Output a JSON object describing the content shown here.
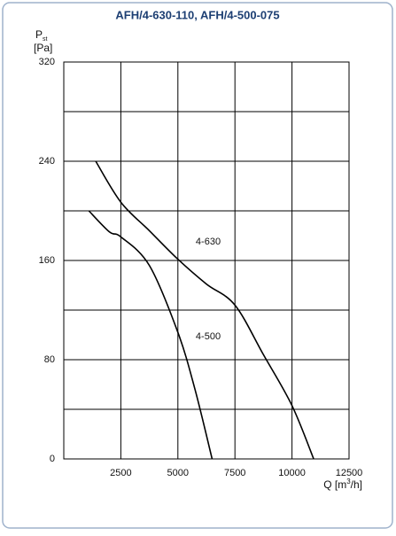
{
  "chart_data": {
    "type": "line",
    "title": "AFH/4-630-110, AFH/4-500-075",
    "y_label": {
      "symbol": "P",
      "subscript": "st",
      "unit": "[Pa]"
    },
    "x_label": {
      "text": "Q [m",
      "superscript": "3",
      "end": "/h]"
    },
    "xlim": [
      0,
      12500
    ],
    "xticks": [
      2500,
      5000,
      7500,
      10000,
      12500
    ],
    "ylim": [
      0,
      320
    ],
    "yticks": [
      0,
      80,
      160,
      240,
      320
    ],
    "y_minor_ticks": [
      40,
      120,
      200,
      280
    ],
    "grid": true,
    "series": [
      {
        "name": "4-630",
        "color": "#000000",
        "x": [
          1400,
          2500,
          3750,
          5000,
          6250,
          7500,
          8750,
          10000,
          10950
        ],
        "values": [
          240,
          207,
          184,
          161,
          141,
          124,
          84,
          43,
          0
        ]
      },
      {
        "name": "4-500",
        "color": "#000000",
        "x": [
          1100,
          2000,
          2500,
          3750,
          5000,
          5750,
          6500
        ],
        "values": [
          200,
          183,
          179,
          156,
          102,
          56,
          0
        ]
      }
    ]
  }
}
